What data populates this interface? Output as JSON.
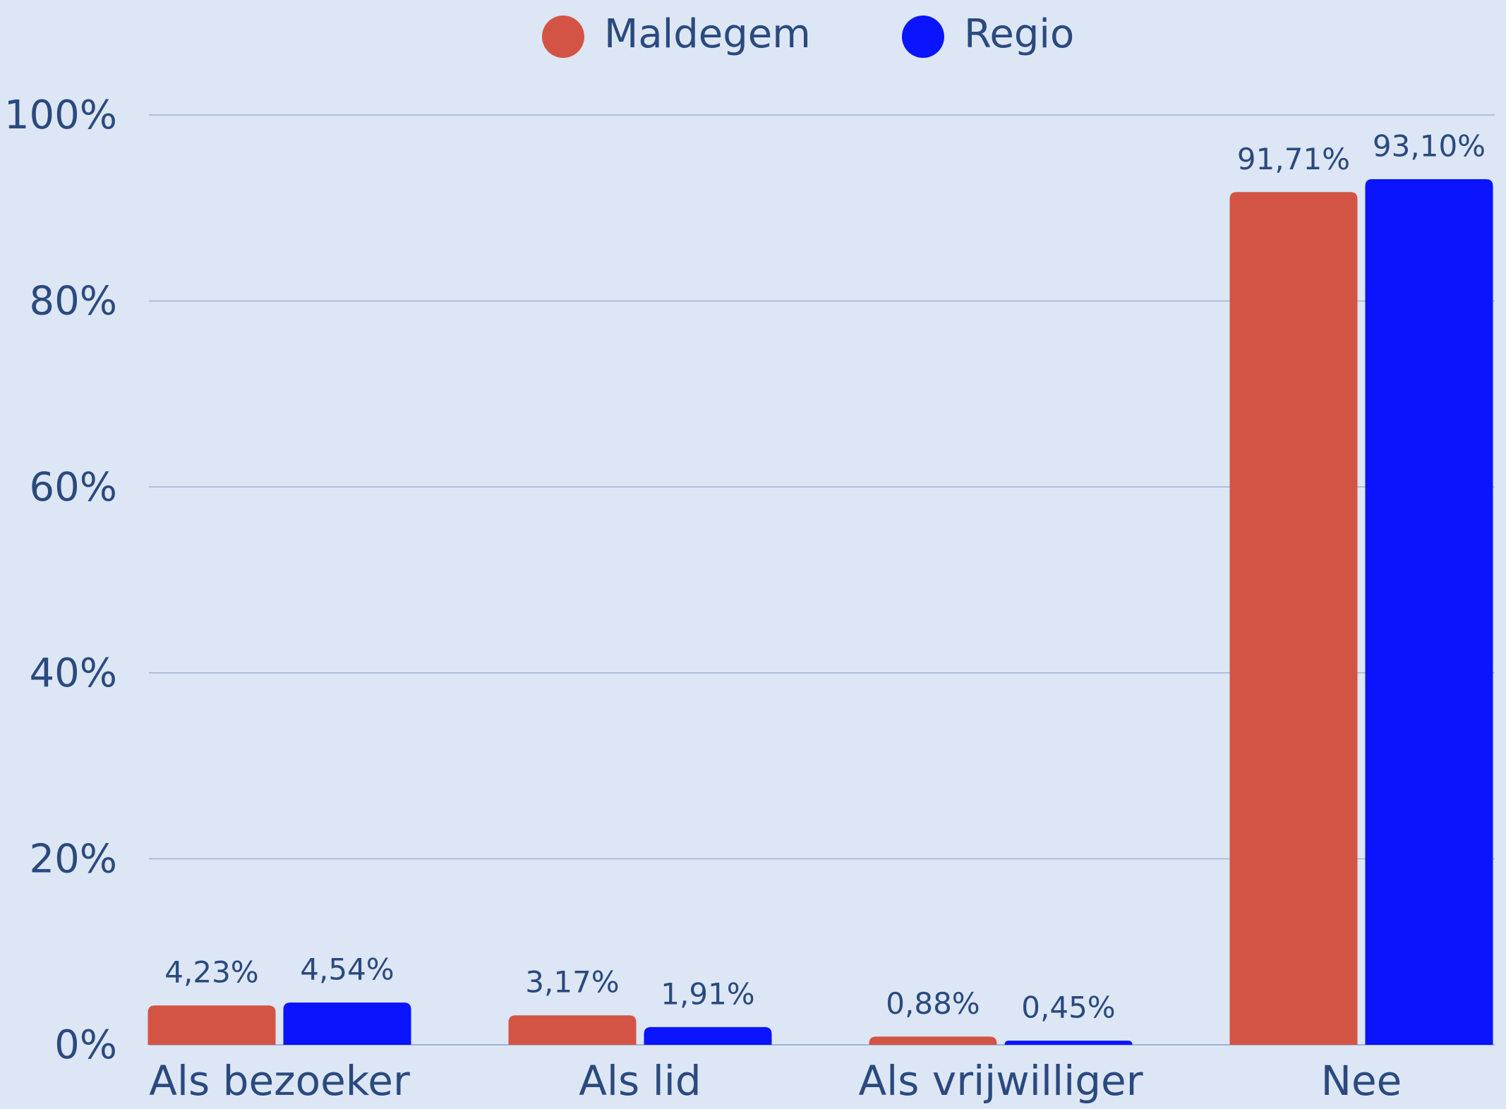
{
  "chart_data": {
    "type": "bar",
    "categories": [
      "Als bezoeker",
      "Als lid",
      "Als vrijwilliger",
      "Nee"
    ],
    "series": [
      {
        "name": "Maldegem",
        "color": "#d35445",
        "values": [
          4.23,
          3.17,
          0.88,
          91.71
        ],
        "value_labels": [
          "4,23%",
          "3,17%",
          "0,88%",
          "91,71%"
        ]
      },
      {
        "name": "Regio",
        "color": "#0a14ff",
        "values": [
          4.54,
          1.91,
          0.45,
          93.1
        ],
        "value_labels": [
          "4,54%",
          "1,91%",
          "0,45%",
          "93,10%"
        ]
      }
    ],
    "ylim": [
      0,
      100
    ],
    "yticks": [
      {
        "value": 0,
        "label": "0%"
      },
      {
        "value": 20,
        "label": "20%"
      },
      {
        "value": 40,
        "label": "40%"
      },
      {
        "value": 60,
        "label": "60%"
      },
      {
        "value": 80,
        "label": "80%"
      },
      {
        "value": 100,
        "label": "100%"
      }
    ],
    "grid": true,
    "legend": "top"
  }
}
